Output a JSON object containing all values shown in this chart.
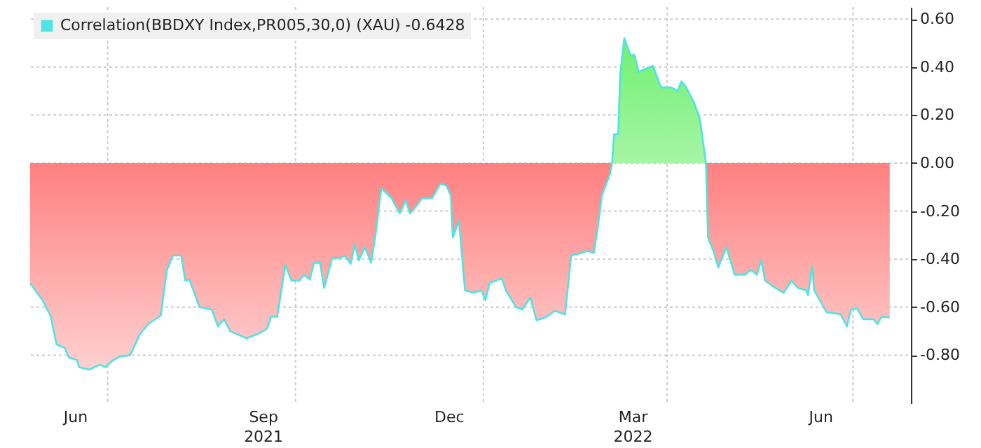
{
  "chart_data": {
    "type": "area",
    "x": [
      "2021-05-24",
      "2021-05-30",
      "2021-06-03",
      "2021-06-06",
      "2021-06-10",
      "2021-06-12",
      "2021-06-16",
      "2021-06-17",
      "2021-06-22",
      "2021-06-27",
      "2021-06-30",
      "2021-07-03",
      "2021-07-07",
      "2021-07-12",
      "2021-07-17",
      "2021-07-21",
      "2021-07-27",
      "2021-07-30",
      "2021-08-02",
      "2021-08-06",
      "2021-08-08",
      "2021-08-10",
      "2021-08-15",
      "2021-08-21",
      "2021-08-24",
      "2021-08-27",
      "2021-08-30",
      "2021-09-07",
      "2021-09-13",
      "2021-09-17",
      "2021-09-19",
      "2021-09-22",
      "2021-09-26",
      "2021-09-29",
      "2021-10-03",
      "2021-10-05",
      "2021-10-08",
      "2021-10-10",
      "2021-10-13",
      "2021-10-15",
      "2021-10-19",
      "2021-10-23",
      "2021-10-25",
      "2021-10-28",
      "2021-10-30",
      "2021-11-01",
      "2021-11-04",
      "2021-11-07",
      "2021-11-09",
      "2021-11-12",
      "2021-11-17",
      "2021-11-21",
      "2021-11-24",
      "2021-11-26",
      "2021-11-30",
      "2021-12-02",
      "2021-12-07",
      "2021-12-11",
      "2021-12-14",
      "2021-12-16",
      "2021-12-17",
      "2021-12-20",
      "2021-12-23",
      "2021-12-27",
      "2021-12-31",
      "2022-01-02",
      "2022-01-04",
      "2022-01-10",
      "2022-01-12",
      "2022-01-17",
      "2022-01-20",
      "2022-01-24",
      "2022-01-27",
      "2022-02-01",
      "2022-02-05",
      "2022-02-10",
      "2022-02-13",
      "2022-02-18",
      "2022-02-21",
      "2022-02-24",
      "2022-02-26",
      "2022-02-28",
      "2022-03-04",
      "2022-03-05",
      "2022-03-06",
      "2022-03-08",
      "2022-03-09",
      "2022-03-11",
      "2022-03-14",
      "2022-03-16",
      "2022-03-18",
      "2022-03-22",
      "2022-03-25",
      "2022-03-29",
      "2022-04-03",
      "2022-04-06",
      "2022-04-08",
      "2022-04-10",
      "2022-04-14",
      "2022-04-17",
      "2022-04-20",
      "2022-04-21",
      "2022-04-24",
      "2022-04-26",
      "2022-04-30",
      "2022-05-04",
      "2022-05-09",
      "2022-05-12",
      "2022-05-15",
      "2022-05-17",
      "2022-05-19",
      "2022-05-24",
      "2022-05-28",
      "2022-06-01",
      "2022-06-04",
      "2022-06-08",
      "2022-06-09",
      "2022-06-11",
      "2022-06-12",
      "2022-06-18",
      "2022-06-25",
      "2022-06-28",
      "2022-06-30",
      "2022-07-03",
      "2022-07-06",
      "2022-07-11",
      "2022-07-13",
      "2022-07-15",
      "2022-07-19"
    ],
    "series": [
      {
        "name": "Correlation(BBDXY Index,PR005,30,0) (XAU) -0.6428",
        "color": "#4fe3e3",
        "values": [
          -0.5,
          -0.57,
          -0.635,
          -0.755,
          -0.77,
          -0.81,
          -0.82,
          -0.85,
          -0.86,
          -0.84,
          -0.85,
          -0.825,
          -0.805,
          -0.8,
          -0.71,
          -0.67,
          -0.635,
          -0.445,
          -0.385,
          -0.385,
          -0.49,
          -0.485,
          -0.6,
          -0.61,
          -0.68,
          -0.65,
          -0.7,
          -0.73,
          -0.71,
          -0.69,
          -0.64,
          -0.64,
          -0.425,
          -0.49,
          -0.49,
          -0.465,
          -0.485,
          -0.415,
          -0.415,
          -0.52,
          -0.395,
          -0.395,
          -0.385,
          -0.42,
          -0.34,
          -0.405,
          -0.35,
          -0.415,
          -0.31,
          -0.105,
          -0.145,
          -0.21,
          -0.155,
          -0.21,
          -0.17,
          -0.145,
          -0.145,
          -0.085,
          -0.095,
          -0.135,
          -0.31,
          -0.24,
          -0.53,
          -0.54,
          -0.53,
          -0.57,
          -0.5,
          -0.48,
          -0.53,
          -0.6,
          -0.61,
          -0.56,
          -0.655,
          -0.64,
          -0.615,
          -0.63,
          -0.385,
          -0.375,
          -0.365,
          -0.375,
          -0.27,
          -0.135,
          -0.045,
          0.0,
          0.12,
          0.12,
          0.37,
          0.52,
          0.45,
          0.45,
          0.38,
          0.395,
          0.405,
          0.315,
          0.315,
          0.3,
          0.34,
          0.32,
          0.255,
          0.185,
          0.0,
          -0.31,
          -0.375,
          -0.435,
          -0.35,
          -0.465,
          -0.465,
          -0.445,
          -0.465,
          -0.405,
          -0.49,
          -0.52,
          -0.54,
          -0.49,
          -0.52,
          -0.53,
          -0.55,
          -0.43,
          -0.53,
          -0.62,
          -0.63,
          -0.68,
          -0.61,
          -0.605,
          -0.65,
          -0.65,
          -0.67,
          -0.64,
          -0.6428
        ]
      }
    ],
    "xlim": [
      "2021-05-23",
      "2022-07-28"
    ],
    "xticks": [
      {
        "value": "2021-06-15",
        "label": "Jun"
      },
      {
        "value": "2021-07-01",
        "label": null
      },
      {
        "value": "2021-09-15",
        "label": "Sep\n2021"
      },
      {
        "value": "2021-10-01",
        "label": null
      },
      {
        "value": "2021-12-15",
        "label": "Dec"
      },
      {
        "value": "2022-01-01",
        "label": null
      },
      {
        "value": "2022-03-15",
        "label": "Mar\n2022"
      },
      {
        "value": "2022-04-01",
        "label": null
      },
      {
        "value": "2022-06-15",
        "label": "Jun"
      },
      {
        "value": "2022-07-01",
        "label": null
      }
    ],
    "ylim": [
      -1.0,
      0.65
    ],
    "yticks": [
      {
        "value": -0.8,
        "label": "-0.80"
      },
      {
        "value": -0.6,
        "label": "-0.60"
      },
      {
        "value": -0.4,
        "label": "-0.40"
      },
      {
        "value": -0.2,
        "label": "-0.20"
      },
      {
        "value": 0,
        "label": "0.00"
      },
      {
        "value": 0.2,
        "label": "0.20"
      },
      {
        "value": 0.4,
        "label": "0.40"
      },
      {
        "value": 0.6,
        "label": "0.60"
      }
    ],
    "grid": true,
    "legend": "top left"
  }
}
